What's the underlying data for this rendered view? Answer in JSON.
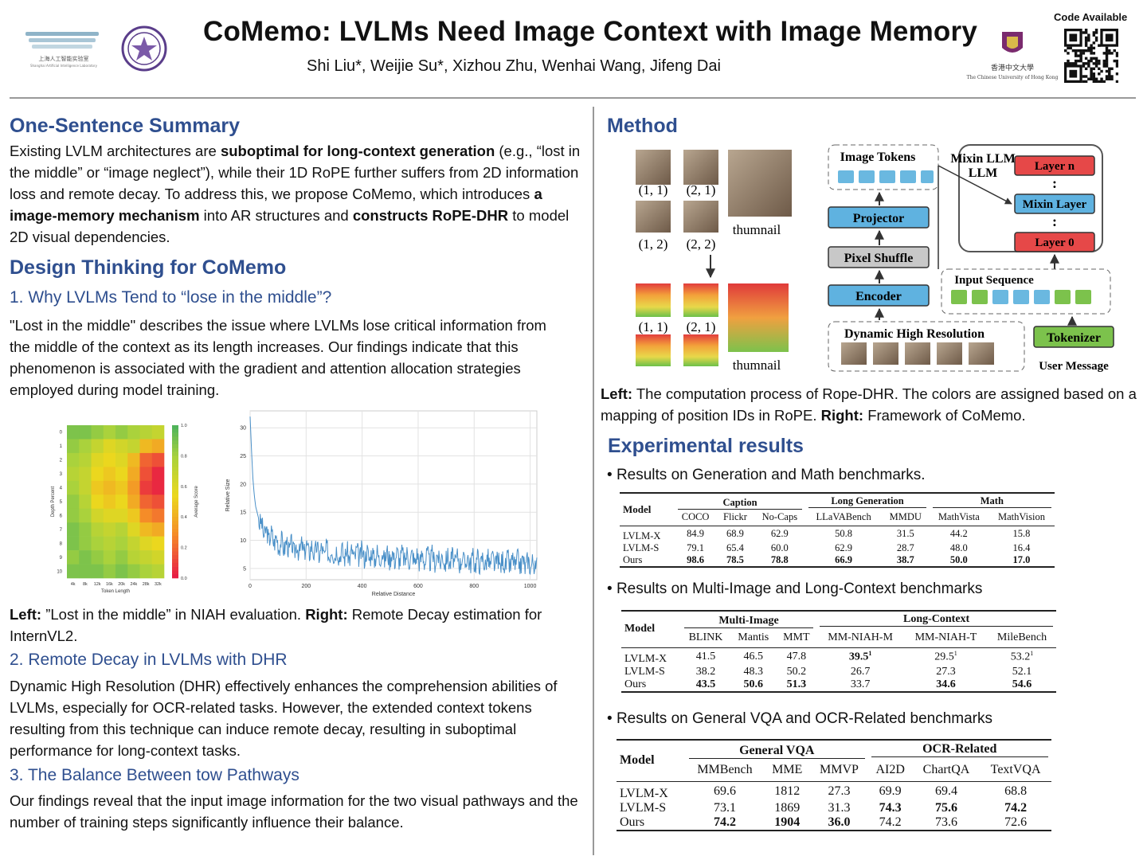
{
  "header": {
    "title": "CoMemo: LVLMs Need Image Context with Image Memory",
    "authors": "Shi Liu*, Weijie Su*, Xizhou Zhu, Wenhai Wang, Jifeng Dai",
    "code_label": "Code Available",
    "logo_left_text": "上海人工智能实验室",
    "logo_left_subtext": "Shanghai Artificial Intelligence Laboratory",
    "logo_cuhk_text": "香港中文大學",
    "logo_cuhk_subtext": "The Chinese University of Hong Kong"
  },
  "summary": {
    "heading": "One-Sentence Summary",
    "p1": "Existing LVLM architectures are ",
    "p1_bold": "suboptimal for long-context generation",
    "p2": " (e.g., “lost in the middle” or “image neglect”), while their 1D RoPE further suffers from 2D information loss and remote decay. To address this, we propose CoMemo, which introduces ",
    "p2_bold": "a image-memory mechanism",
    "p3": " into AR structures and ",
    "p3_bold": "constructs RoPE-DHR",
    "p4": " to model 2D visual dependencies."
  },
  "design": {
    "heading": "Design Thinking for CoMemo",
    "s1_heading": "1. Why LVLMs Tend to “lose in the middle”?",
    "s1_text": "\"Lost in the middle\" describes the issue where LVLMs lose critical information from the middle of the context as its length increases. Our findings indicate that this phenomenon is associated with the gradient and attention allocation strategies employed during model training.",
    "caption_left": "Left:",
    "caption_mid": " ”Lost in the middle” in NIAH evaluation. ",
    "caption_right": "Right:",
    "caption_end": " Remote Decay estimation for InternVL2.",
    "s2_heading": "2. Remote Decay in LVLMs with DHR",
    "s2_text": "Dynamic High Resolution (DHR) effectively enhances the comprehension abilities of LVLMs, especially for OCR-related tasks. However, the extended context tokens resulting from this technique can induce remote decay, resulting in suboptimal performance for long-context tasks.",
    "s3_heading": "3. The Balance Between tow Pathways",
    "s3_text": "Our findings reveal that the input image information for the two visual pathways and the number of training steps significantly influence their balance."
  },
  "method": {
    "heading": "Method",
    "coords": [
      "(1, 1)",
      "(2, 1)",
      "(1, 2)",
      "(2, 2)"
    ],
    "thumbnail": "thumnail",
    "image_tokens": "Image Tokens",
    "projector": "Projector",
    "pixel_shuffle": "Pixel Shuffle",
    "encoder": "Encoder",
    "dhr": "Dynamic High Resolution",
    "mixin_llm": "Mixin LLM",
    "layer_n": "Layer n",
    "mixin_layer": "Mixin Layer",
    "layer_0": "Layer 0",
    "input_sequence": "Input Sequence",
    "tokenizer": "Tokenizer",
    "user_message": "User Message",
    "dots": ":",
    "caption_left": "Left:",
    "caption_mid": " The computation process of Rope-DHR. The colors are assigned based on a mapping of position IDs in RoPE. ",
    "caption_right": "Right:",
    "caption_end": " Framework of CoMemo."
  },
  "experiments": {
    "heading": "Experimental results",
    "bullet1": "Results on Generation and Math benchmarks.",
    "bullet2": "Results on Multi-Image and Long-Context benchmarks",
    "bullet3": "Results on General VQA and OCR-Related benchmarks",
    "table1": {
      "model_label": "Model",
      "groups": [
        "Caption",
        "Long Generation",
        "Math"
      ],
      "columns": [
        "COCO",
        "Flickr",
        "No-Caps",
        "LLaVABench",
        "MMDU",
        "MathVista",
        "MathVision"
      ],
      "rows": [
        {
          "model": "LVLM-X",
          "values": [
            "84.9",
            "68.9",
            "62.9",
            "50.8",
            "31.5",
            "44.2",
            "15.8"
          ]
        },
        {
          "model": "LVLM-S",
          "values": [
            "79.1",
            "65.4",
            "60.0",
            "62.9",
            "28.7",
            "48.0",
            "16.4"
          ]
        },
        {
          "model": "Ours",
          "values": [
            "98.6",
            "78.5",
            "78.8",
            "66.9",
            "38.7",
            "50.0",
            "17.0"
          ]
        }
      ]
    },
    "table2": {
      "model_label": "Model",
      "groups": [
        "Multi-Image",
        "Long-Context"
      ],
      "columns": [
        "BLINK",
        "Mantis",
        "MMT",
        "MM-NIAH-M",
        "MM-NIAH-T",
        "MileBench"
      ],
      "rows": [
        {
          "model": "LVLM-X",
          "values": [
            "41.5",
            "46.5",
            "47.8",
            "39.5",
            "29.5",
            "53.2"
          ]
        },
        {
          "model": "LVLM-S",
          "values": [
            "38.2",
            "48.3",
            "50.2",
            "26.7",
            "27.3",
            "52.1"
          ]
        },
        {
          "model": "Ours",
          "values": [
            "43.5",
            "50.6",
            "51.3",
            "33.7",
            "34.6",
            "54.6"
          ]
        }
      ],
      "sup": "1"
    },
    "table3": {
      "model_label": "Model",
      "groups": [
        "General VQA",
        "OCR-Related"
      ],
      "columns": [
        "MMBench",
        "MME",
        "MMVP",
        "AI2D",
        "ChartQA",
        "TextVQA"
      ],
      "rows": [
        {
          "model": "LVLM-X",
          "values": [
            "69.6",
            "1812",
            "27.3",
            "69.9",
            "69.4",
            "68.8"
          ]
        },
        {
          "model": "LVLM-S",
          "values": [
            "73.1",
            "1869",
            "31.3",
            "74.3",
            "75.6",
            "74.2"
          ]
        },
        {
          "model": "Ours",
          "values": [
            "74.2",
            "1904",
            "36.0",
            "74.2",
            "73.6",
            "72.6"
          ]
        }
      ]
    }
  },
  "chart_data": [
    {
      "type": "heatmap",
      "xlabel": "Token Length",
      "ylabel": "Depth Percent",
      "colorbar_label": "Average Score",
      "x_ticks": [
        "4k",
        "8k",
        "12k",
        "16k",
        "20k",
        "24k",
        "28k",
        "32k"
      ],
      "y_ticks": [
        "0",
        "1",
        "2",
        "3",
        "4",
        "5",
        "6",
        "7",
        "8",
        "9",
        "10"
      ],
      "colorbar_ticks": [
        "0.0",
        "0.2",
        "0.4",
        "0.6",
        "0.8",
        "1.0"
      ],
      "values": [
        [
          0.9,
          0.9,
          0.85,
          0.8,
          0.85,
          0.8,
          0.75,
          0.7
        ],
        [
          0.85,
          0.8,
          0.7,
          0.6,
          0.65,
          0.7,
          0.45,
          0.4
        ],
        [
          0.8,
          0.75,
          0.6,
          0.55,
          0.6,
          0.45,
          0.2,
          0.15
        ],
        [
          0.75,
          0.7,
          0.55,
          0.5,
          0.55,
          0.4,
          0.15,
          0.05
        ],
        [
          0.8,
          0.7,
          0.5,
          0.45,
          0.5,
          0.35,
          0.1,
          0.05
        ],
        [
          0.85,
          0.75,
          0.55,
          0.5,
          0.55,
          0.4,
          0.2,
          0.15
        ],
        [
          0.85,
          0.8,
          0.65,
          0.6,
          0.6,
          0.5,
          0.3,
          0.25
        ],
        [
          0.9,
          0.85,
          0.75,
          0.7,
          0.75,
          0.6,
          0.45,
          0.4
        ],
        [
          0.9,
          0.85,
          0.8,
          0.75,
          0.8,
          0.7,
          0.6,
          0.55
        ],
        [
          0.85,
          0.9,
          0.85,
          0.8,
          0.85,
          0.75,
          0.7,
          0.65
        ],
        [
          0.9,
          0.9,
          0.9,
          0.85,
          0.9,
          0.85,
          0.8,
          0.75
        ]
      ]
    },
    {
      "type": "line",
      "xlabel": "Relative Distance",
      "ylabel": "Relative Size",
      "xlim": [
        0,
        1024
      ],
      "ylim": [
        3,
        33
      ],
      "x_ticks": [
        0,
        200,
        400,
        600,
        800,
        1000
      ],
      "y_ticks": [
        5,
        10,
        15,
        20,
        25,
        30
      ],
      "grid": true,
      "series": [
        {
          "color": "#4a90c8",
          "x": [
            0,
            5,
            10,
            15,
            20,
            30,
            40,
            50,
            60,
            80,
            100,
            130,
            160,
            200,
            250,
            300,
            350,
            400,
            450,
            500,
            550,
            600,
            650,
            700,
            750,
            800,
            850,
            900,
            950,
            1000,
            1024
          ],
          "y": [
            32,
            26,
            21,
            18,
            16,
            14,
            12.5,
            11.5,
            11,
            10.5,
            9.5,
            9,
            8.5,
            8.5,
            8,
            7.8,
            7.5,
            7.5,
            7.2,
            7.2,
            7,
            6.8,
            6.8,
            6.5,
            6.5,
            6.3,
            6.2,
            6,
            6,
            5.8,
            5.5
          ]
        }
      ]
    }
  ]
}
